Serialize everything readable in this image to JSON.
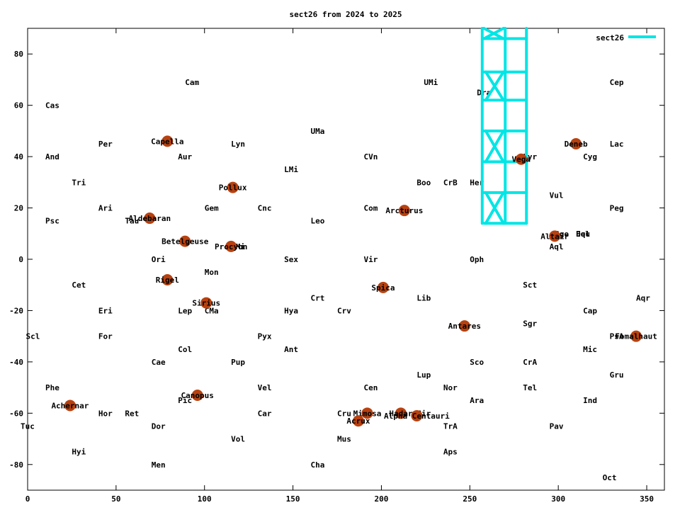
{
  "chart_data": {
    "type": "scatter",
    "title": "sect26 from 2024 to 2025",
    "xlabel": "",
    "ylabel": "",
    "xlim": [
      0,
      360
    ],
    "ylim": [
      -90,
      90
    ],
    "x_ticks": [
      0,
      50,
      100,
      150,
      200,
      250,
      300,
      350
    ],
    "y_ticks": [
      -80,
      -60,
      -40,
      -20,
      0,
      20,
      40,
      60,
      80
    ],
    "grid": false,
    "legend_position": "top-right",
    "series": [
      {
        "name": "sect26",
        "color": "#00e5e5",
        "segments": [
          [
            [
              257,
              90
            ],
            [
              257,
              14
            ]
          ],
          [
            [
              270,
              90
            ],
            [
              270,
              14
            ]
          ],
          [
            [
              282,
              90
            ],
            [
              282,
              14
            ]
          ],
          [
            [
              258,
              86
            ],
            [
              282,
              86
            ]
          ],
          [
            [
              258,
              73
            ],
            [
              282,
              73
            ]
          ],
          [
            [
              258,
              62
            ],
            [
              282,
              62
            ]
          ],
          [
            [
              258,
              50
            ],
            [
              282,
              50
            ]
          ],
          [
            [
              258,
              38
            ],
            [
              282,
              38
            ]
          ],
          [
            [
              258,
              26
            ],
            [
              282,
              26
            ]
          ],
          [
            [
              258,
              14
            ],
            [
              282,
              14
            ]
          ],
          [
            [
              258,
              90
            ],
            [
              269,
              86
            ]
          ],
          [
            [
              269,
              90
            ],
            [
              258,
              86
            ]
          ],
          [
            [
              259,
              73
            ],
            [
              269,
              62
            ]
          ],
          [
            [
              269,
              73
            ],
            [
              259,
              62
            ]
          ],
          [
            [
              259,
              50
            ],
            [
              269,
              38
            ]
          ],
          [
            [
              269,
              50
            ],
            [
              259,
              38
            ]
          ],
          [
            [
              259,
              26
            ],
            [
              269,
              14
            ]
          ],
          [
            [
              269,
              26
            ],
            [
              259,
              14
            ]
          ]
        ]
      }
    ],
    "constellations": [
      {
        "label": "Cam",
        "x": 89,
        "y": 69
      },
      {
        "label": "UMi",
        "x": 224,
        "y": 69
      },
      {
        "label": "Cep",
        "x": 329,
        "y": 69
      },
      {
        "label": "Dra",
        "x": 254,
        "y": 65
      },
      {
        "label": "Cas",
        "x": 10,
        "y": 60
      },
      {
        "label": "UMa",
        "x": 160,
        "y": 50
      },
      {
        "label": "Per",
        "x": 40,
        "y": 45
      },
      {
        "label": "Lyn",
        "x": 115,
        "y": 45
      },
      {
        "label": "Lac",
        "x": 329,
        "y": 45
      },
      {
        "label": "And",
        "x": 10,
        "y": 40
      },
      {
        "label": "Aur",
        "x": 85,
        "y": 40
      },
      {
        "label": "CVn",
        "x": 190,
        "y": 40
      },
      {
        "label": "Cyg",
        "x": 314,
        "y": 40
      },
      {
        "label": "Lyr",
        "x": 280,
        "y": 40
      },
      {
        "label": "LMi",
        "x": 145,
        "y": 35
      },
      {
        "label": "Tri",
        "x": 25,
        "y": 30
      },
      {
        "label": "Boo",
        "x": 220,
        "y": 30
      },
      {
        "label": "CrB",
        "x": 235,
        "y": 30
      },
      {
        "label": "Her",
        "x": 250,
        "y": 30
      },
      {
        "label": "Vul",
        "x": 295,
        "y": 25
      },
      {
        "label": "Ari",
        "x": 40,
        "y": 20
      },
      {
        "label": "Gem",
        "x": 100,
        "y": 20
      },
      {
        "label": "Cnc",
        "x": 130,
        "y": 20
      },
      {
        "label": "Com",
        "x": 190,
        "y": 20
      },
      {
        "label": "Peg",
        "x": 329,
        "y": 20
      },
      {
        "label": "Psc",
        "x": 10,
        "y": 15
      },
      {
        "label": "Tau",
        "x": 55,
        "y": 15
      },
      {
        "label": "Leo",
        "x": 160,
        "y": 15
      },
      {
        "label": "Sge",
        "x": 298,
        "y": 10
      },
      {
        "label": "Del",
        "x": 310,
        "y": 10
      },
      {
        "label": "Equ",
        "x": 310,
        "y": 10
      },
      {
        "label": "CMi",
        "x": 115,
        "y": 5
      },
      {
        "label": "Aql",
        "x": 295,
        "y": 5
      },
      {
        "label": "Ori",
        "x": 70,
        "y": 0
      },
      {
        "label": "Sex",
        "x": 145,
        "y": 0
      },
      {
        "label": "Vir",
        "x": 190,
        "y": 0
      },
      {
        "label": "Oph",
        "x": 250,
        "y": 0
      },
      {
        "label": "Mon",
        "x": 100,
        "y": -5
      },
      {
        "label": "Cet",
        "x": 25,
        "y": -10
      },
      {
        "label": "Sct",
        "x": 280,
        "y": -10
      },
      {
        "label": "Crt",
        "x": 160,
        "y": -15
      },
      {
        "label": "Lib",
        "x": 220,
        "y": -15
      },
      {
        "label": "Aqr",
        "x": 344,
        "y": -15
      },
      {
        "label": "Eri",
        "x": 40,
        "y": -20
      },
      {
        "label": "Lep",
        "x": 85,
        "y": -20
      },
      {
        "label": "CMa",
        "x": 100,
        "y": -20
      },
      {
        "label": "Hya",
        "x": 145,
        "y": -20
      },
      {
        "label": "Crv",
        "x": 175,
        "y": -20
      },
      {
        "label": "Cap",
        "x": 314,
        "y": -20
      },
      {
        "label": "Sgr",
        "x": 280,
        "y": -25
      },
      {
        "label": "Scl",
        "x": -1,
        "y": -30
      },
      {
        "label": "For",
        "x": 40,
        "y": -30
      },
      {
        "label": "Pyx",
        "x": 130,
        "y": -30
      },
      {
        "label": "PsA",
        "x": 329,
        "y": -30
      },
      {
        "label": "Col",
        "x": 85,
        "y": -35
      },
      {
        "label": "Ant",
        "x": 145,
        "y": -35
      },
      {
        "label": "Mic",
        "x": 314,
        "y": -35
      },
      {
        "label": "Cae",
        "x": 70,
        "y": -40
      },
      {
        "label": "Pup",
        "x": 115,
        "y": -40
      },
      {
        "label": "Sco",
        "x": 250,
        "y": -40
      },
      {
        "label": "CrA",
        "x": 280,
        "y": -40
      },
      {
        "label": "Lup",
        "x": 220,
        "y": -45
      },
      {
        "label": "Gru",
        "x": 329,
        "y": -45
      },
      {
        "label": "Phe",
        "x": 10,
        "y": -50
      },
      {
        "label": "Vel",
        "x": 130,
        "y": -50
      },
      {
        "label": "Cen",
        "x": 190,
        "y": -50
      },
      {
        "label": "Nor",
        "x": 235,
        "y": -50
      },
      {
        "label": "Tel",
        "x": 280,
        "y": -50
      },
      {
        "label": "Pic",
        "x": 85,
        "y": -55
      },
      {
        "label": "Ara",
        "x": 250,
        "y": -55
      },
      {
        "label": "Ind",
        "x": 314,
        "y": -55
      },
      {
        "label": "Hor",
        "x": 40,
        "y": -60
      },
      {
        "label": "Ret",
        "x": 55,
        "y": -60
      },
      {
        "label": "Car",
        "x": 130,
        "y": -60
      },
      {
        "label": "Cru",
        "x": 175,
        "y": -60
      },
      {
        "label": "Cir",
        "x": 220,
        "y": -60
      },
      {
        "label": "Tuc",
        "x": -4,
        "y": -65
      },
      {
        "label": "Dor",
        "x": 70,
        "y": -65
      },
      {
        "label": "TrA",
        "x": 235,
        "y": -65
      },
      {
        "label": "Pav",
        "x": 295,
        "y": -65
      },
      {
        "label": "Vol",
        "x": 115,
        "y": -70
      },
      {
        "label": "Mus",
        "x": 175,
        "y": -70
      },
      {
        "label": "Hyi",
        "x": 25,
        "y": -75
      },
      {
        "label": "Aps",
        "x": 235,
        "y": -75
      },
      {
        "label": "Men",
        "x": 70,
        "y": -80
      },
      {
        "label": "Cha",
        "x": 160,
        "y": -80
      },
      {
        "label": "Oct",
        "x": 325,
        "y": -85
      }
    ],
    "stars": [
      {
        "label": "Capella",
        "x": 79,
        "y": 46
      },
      {
        "label": "Deneb",
        "x": 310,
        "y": 45
      },
      {
        "label": "Vega",
        "x": 279,
        "y": 39
      },
      {
        "label": "Pollux",
        "x": 116,
        "y": 28
      },
      {
        "label": "Arcturus",
        "x": 213,
        "y": 19
      },
      {
        "label": "Aldebaran",
        "x": 69,
        "y": 16
      },
      {
        "label": "Altair",
        "x": 298,
        "y": 9
      },
      {
        "label": "Betelgeuse",
        "x": 89,
        "y": 7
      },
      {
        "label": "Procyon",
        "x": 115,
        "y": 5
      },
      {
        "label": "Rigel",
        "x": 79,
        "y": -8
      },
      {
        "label": "Spica",
        "x": 201,
        "y": -11
      },
      {
        "label": "Sirius",
        "x": 101,
        "y": -17
      },
      {
        "label": "Antares",
        "x": 247,
        "y": -26
      },
      {
        "label": "Fomalhaut",
        "x": 344,
        "y": -30
      },
      {
        "label": "Canopus",
        "x": 96,
        "y": -53
      },
      {
        "label": "Achernar",
        "x": 24,
        "y": -57
      },
      {
        "label": "Mimosa",
        "x": 192,
        "y": -60
      },
      {
        "label": "Hadar",
        "x": 211,
        "y": -60
      },
      {
        "label": "Alpha Centauri",
        "x": 220,
        "y": -61
      },
      {
        "label": "Acrux",
        "x": 187,
        "y": -63
      }
    ],
    "star_color": "#b8410f"
  }
}
